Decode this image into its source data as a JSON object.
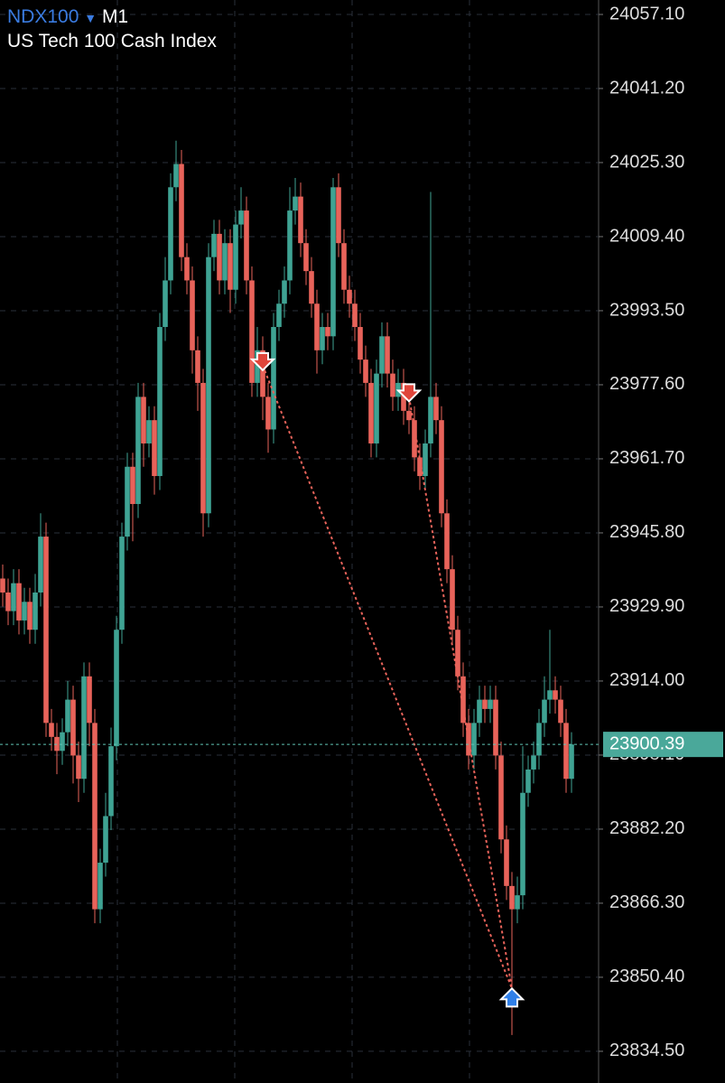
{
  "chart_data": {
    "type": "candlestick",
    "symbol": "NDX100",
    "timeframe": "M1",
    "title": "US Tech 100 Cash Index",
    "up_color": "#3fa393",
    "down_color": "#e8635a",
    "grid": true,
    "ylim": [
      23827.7,
      24060.2
    ],
    "yticks": [
      {
        "value": 24057.1,
        "label": "24057.10"
      },
      {
        "value": 24041.2,
        "label": "24041.20"
      },
      {
        "value": 24025.3,
        "label": "24025.30"
      },
      {
        "value": 24009.4,
        "label": "24009.40"
      },
      {
        "value": 23993.5,
        "label": "23993.50"
      },
      {
        "value": 23977.6,
        "label": "23977.60"
      },
      {
        "value": 23961.7,
        "label": "23961.70"
      },
      {
        "value": 23945.8,
        "label": "23945.80"
      },
      {
        "value": 23929.9,
        "label": "23929.90"
      },
      {
        "value": 23914,
        "label": "23914.00"
      },
      {
        "value": 23898.1,
        "label": "23898.10"
      },
      {
        "value": 23882.2,
        "label": "23882.20"
      },
      {
        "value": 23866.3,
        "label": "23866.30"
      },
      {
        "value": 23850.4,
        "label": "23850.40"
      },
      {
        "value": 23834.5,
        "label": "23834.50"
      }
    ],
    "current_price": 23900.39,
    "open": [
      23936,
      23933,
      23929,
      23935,
      23927,
      23931,
      23925,
      23933,
      23945,
      23905,
      23902,
      23899,
      23903,
      23910,
      23898,
      23893,
      23915,
      23905,
      23865,
      23875,
      23885,
      23900,
      23925,
      23945,
      23960,
      23952,
      23975,
      23965,
      23970,
      23958,
      23990,
      24000,
      24020,
      24025,
      24005,
      24000,
      23985,
      23978,
      23950,
      24005,
      24010,
      24000,
      24008,
      23998,
      24012,
      24015,
      24000,
      23978,
      23985,
      23975,
      23968,
      23990,
      23995,
      24000,
      24015,
      24018,
      24008,
      24002,
      23995,
      23985,
      23990,
      23988,
      24020,
      24008,
      23998,
      23995,
      23990,
      23983,
      23978,
      23965,
      23980,
      23988,
      23980,
      23975,
      23978,
      23972,
      23970,
      23962,
      23958,
      23965,
      23975,
      23970,
      23950,
      23938,
      23925,
      23915,
      23905,
      23898,
      23905,
      23910,
      23908,
      23910,
      23898,
      23880,
      23870,
      23865,
      23868,
      23890,
      23895,
      23898,
      23905,
      23910,
      23912,
      23910,
      23905,
      23893
    ],
    "high": [
      23939,
      23936,
      23938,
      23938,
      23934,
      23934,
      23937,
      23950,
      23948,
      23908,
      23905,
      23906,
      23914,
      23913,
      23901,
      23918,
      23918,
      23908,
      23878,
      23890,
      23904,
      23928,
      23948,
      23963,
      23963,
      23978,
      23978,
      23973,
      23973,
      23993,
      24005,
      24023,
      24030,
      24028,
      24008,
      24003,
      23988,
      23981,
      24008,
      24013,
      24013,
      24011,
      24011,
      24015,
      24020,
      24018,
      24003,
      23990,
      23988,
      23978,
      23993,
      23998,
      24003,
      24020,
      24022,
      24021,
      24011,
      24005,
      23998,
      23993,
      23993,
      24022,
      24023,
      24011,
      24001,
      23998,
      23993,
      23986,
      23981,
      23983,
      23991,
      23991,
      23983,
      23981,
      23981,
      23975,
      23973,
      23965,
      23968,
      24019,
      23978,
      23973,
      23953,
      23941,
      23928,
      23918,
      23908,
      23908,
      23913,
      23913,
      23913,
      23913,
      23901,
      23883,
      23873,
      23872,
      23900,
      23898,
      23901,
      23908,
      23915,
      23925,
      23915,
      23913,
      23908,
      23903
    ],
    "low": [
      23930,
      23926,
      23926,
      23924,
      23924,
      23922,
      23922,
      23930,
      23902,
      23899,
      23894,
      23896,
      23900,
      23892,
      23888,
      23890,
      23900,
      23862,
      23862,
      23872,
      23882,
      23897,
      23922,
      23942,
      23944,
      23949,
      23960,
      23962,
      23954,
      23955,
      23987,
      23997,
      24017,
      24002,
      23997,
      23980,
      23972,
      23945,
      23947,
      24002,
      23997,
      23997,
      23993,
      23995,
      24009,
      23997,
      23975,
      23975,
      23970,
      23963,
      23965,
      23987,
      23992,
      23997,
      24012,
      24005,
      23999,
      23992,
      23980,
      23982,
      23985,
      23985,
      24005,
      23995,
      23992,
      23987,
      23980,
      23975,
      23962,
      23962,
      23977,
      23977,
      23972,
      23972,
      23969,
      23967,
      23959,
      23955,
      23955,
      23962,
      23967,
      23947,
      23935,
      23922,
      23912,
      23902,
      23895,
      23895,
      23902,
      23905,
      23905,
      23895,
      23877,
      23867,
      23838,
      23862,
      23865,
      23887,
      23892,
      23895,
      23902,
      23907,
      23907,
      23902,
      23890,
      23890
    ],
    "close": [
      23933,
      23929,
      23935,
      23927,
      23931,
      23925,
      23933,
      23945,
      23905,
      23902,
      23899,
      23903,
      23910,
      23898,
      23893,
      23915,
      23905,
      23865,
      23875,
      23885,
      23900,
      23925,
      23945,
      23960,
      23952,
      23975,
      23965,
      23970,
      23958,
      23990,
      24000,
      24020,
      24025,
      24005,
      24000,
      23985,
      23978,
      23950,
      24005,
      24010,
      24000,
      24008,
      23998,
      24012,
      24015,
      24000,
      23978,
      23985,
      23975,
      23968,
      23990,
      23995,
      24000,
      24015,
      24018,
      24008,
      24002,
      23995,
      23985,
      23990,
      23988,
      24020,
      24008,
      23998,
      23995,
      23990,
      23983,
      23978,
      23965,
      23980,
      23988,
      23980,
      23975,
      23978,
      23972,
      23970,
      23962,
      23958,
      23965,
      23975,
      23970,
      23950,
      23938,
      23925,
      23915,
      23905,
      23898,
      23905,
      23910,
      23908,
      23910,
      23898,
      23880,
      23870,
      23865,
      23868,
      23890,
      23895,
      23898,
      23905,
      23910,
      23912,
      23910,
      23905,
      23893,
      23900.39
    ],
    "trades": [
      {
        "direction": "sell",
        "index": 48,
        "price": 23981.7
      },
      {
        "direction": "sell",
        "index": 75,
        "price": 23975
      },
      {
        "direction": "buy",
        "index": 94,
        "price": 23848
      }
    ]
  }
}
